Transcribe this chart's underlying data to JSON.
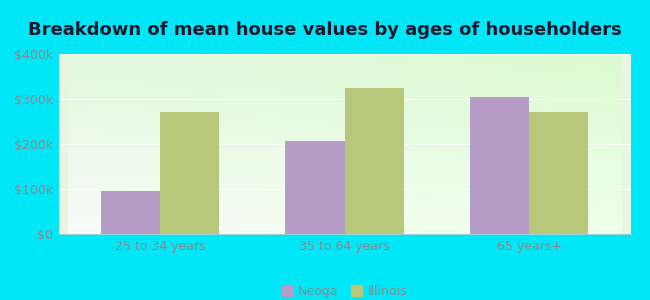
{
  "title": "Breakdown of mean house values by ages of householders",
  "categories": [
    "25 to 34 years",
    "35 to 64 years",
    "65 years+"
  ],
  "neoga_values": [
    95000,
    207000,
    305000
  ],
  "illinois_values": [
    272000,
    325000,
    270000
  ],
  "neoga_color": "#b89cc8",
  "illinois_color": "#b8c87a",
  "background_outer": "#00e8f8",
  "background_inner_tl": "#f0faf0",
  "background_inner_br": "#d8f0d8",
  "ylim": [
    0,
    400000
  ],
  "yticks": [
    0,
    100000,
    200000,
    300000,
    400000
  ],
  "ytick_labels": [
    "$0",
    "$100k",
    "$200k",
    "$300k",
    "$400k"
  ],
  "legend_labels": [
    "Neoga",
    "Illinois"
  ],
  "bar_width": 0.32,
  "title_fontsize": 13,
  "axis_label_fontsize": 9,
  "legend_fontsize": 9,
  "tick_color": "#888888",
  "grid_color": "#e0ece0",
  "spine_color": "#cccccc"
}
